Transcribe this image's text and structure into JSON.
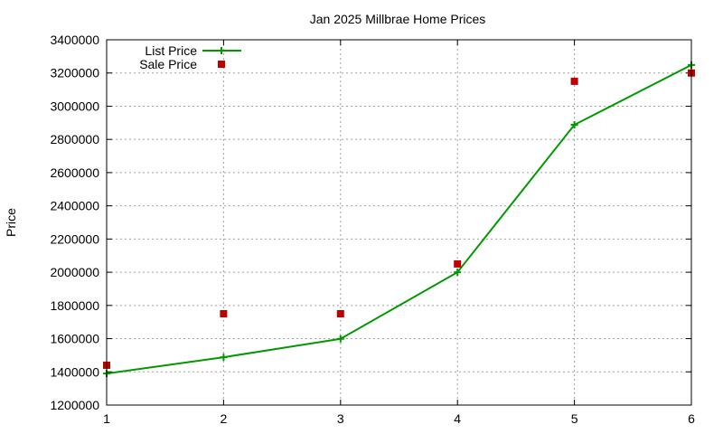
{
  "chart_data": {
    "type": "line",
    "title": "Jan 2025 Millbrae Home Prices",
    "xlabel": "",
    "ylabel": "Price",
    "x": [
      1,
      2,
      3,
      4,
      5,
      6
    ],
    "xlim": [
      1,
      6
    ],
    "ylim": [
      1200000,
      3400000
    ],
    "xticks": [
      "1",
      "2",
      "3",
      "4",
      "5",
      "6"
    ],
    "yticks": [
      "1200000",
      "1400000",
      "1600000",
      "1800000",
      "2000000",
      "2200000",
      "2400000",
      "2600000",
      "2800000",
      "3000000",
      "3200000",
      "3400000"
    ],
    "grid": true,
    "legend_position": "top-left",
    "series": [
      {
        "name": "List Price",
        "style": "line-points",
        "color": "#009900",
        "marker": "plus",
        "values": [
          1390000,
          1488000,
          1599000,
          2000000,
          2888000,
          3248000
        ]
      },
      {
        "name": "Sale Price",
        "style": "points",
        "color": "#c00000",
        "marker": "square",
        "values": [
          1440000,
          1750000,
          1750000,
          2050000,
          3150000,
          3200000
        ]
      }
    ]
  }
}
